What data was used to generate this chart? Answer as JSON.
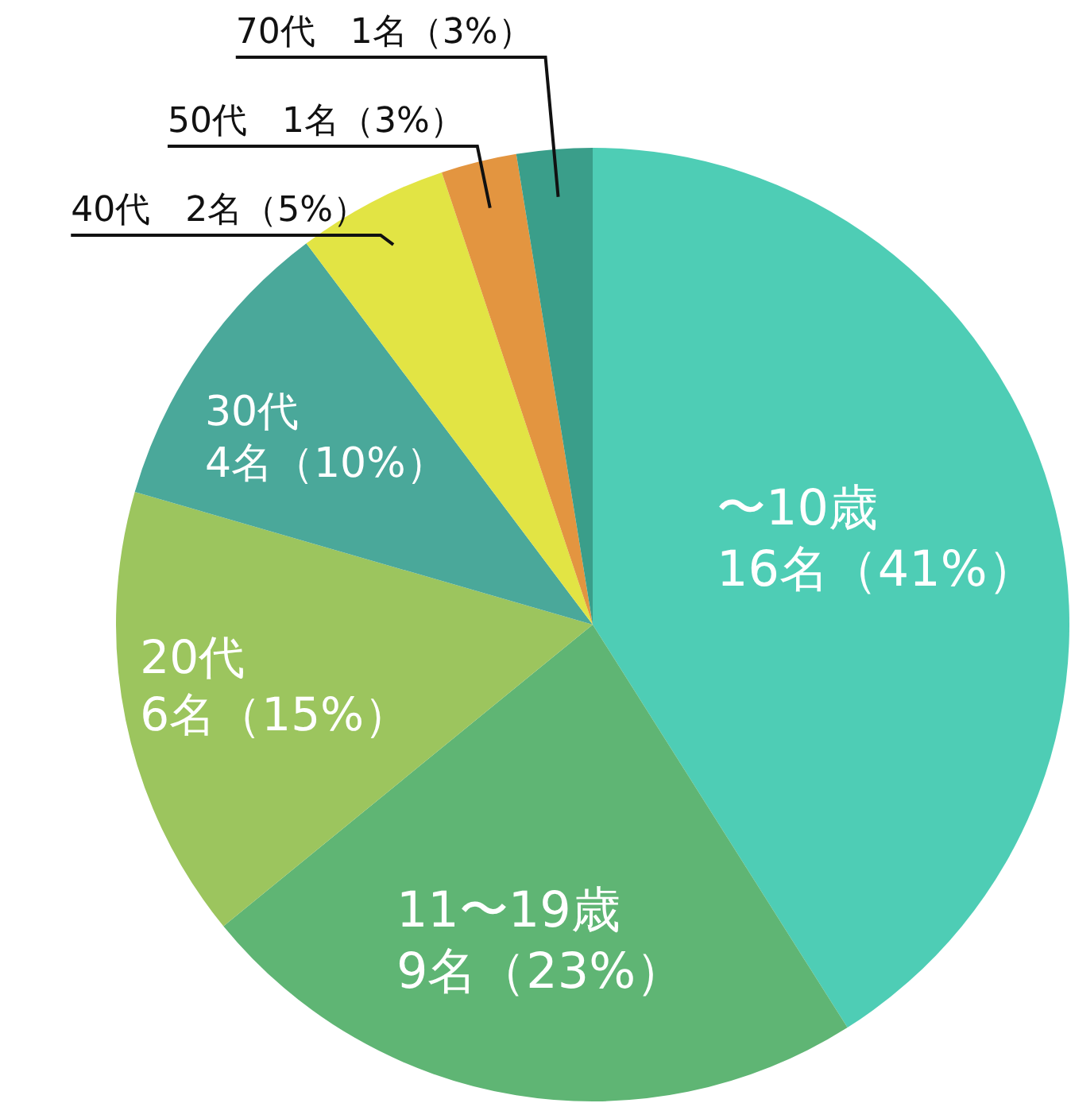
{
  "chart_data": {
    "type": "pie",
    "categories": [
      "〜10歳",
      "11〜19歳",
      "20代",
      "30代",
      "40代",
      "50代",
      "70代"
    ],
    "values": [
      16,
      9,
      6,
      4,
      2,
      1,
      1
    ],
    "colors": [
      "#4ecdb5",
      "#5fb574",
      "#9cc55e",
      "#4aa89a",
      "#e2e444",
      "#e39540",
      "#3a9e8a"
    ],
    "value_labels": [
      "16名（41%）",
      "9名（23%）",
      "6名（15%）",
      "4名（10%）",
      "2名（5%）",
      "1名（3%）",
      "1名（3%）"
    ],
    "legend": false
  }
}
